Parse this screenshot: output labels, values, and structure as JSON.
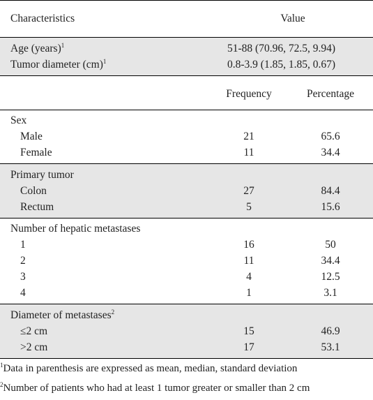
{
  "header": {
    "characteristics": "Characteristics",
    "value": "Value"
  },
  "continuous": [
    {
      "label": "Age (years)",
      "sup": "1",
      "value": "51-88 (70.96, 72.5, 9.94)"
    },
    {
      "label": "Tumor diameter (cm)",
      "sup": "1",
      "value": "0.8-3.9 (1.85, 1.85, 0.67)"
    }
  ],
  "subheader": {
    "frequency": "Frequency",
    "percentage": "Percentage"
  },
  "groups": {
    "sex": {
      "title": "Sex",
      "rows": [
        {
          "label": "Male",
          "freq": "21",
          "pct": "65.6"
        },
        {
          "label": "Female",
          "freq": "11",
          "pct": "34.4"
        }
      ]
    },
    "primary": {
      "title": "Primary tumor",
      "rows": [
        {
          "label": "Colon",
          "freq": "27",
          "pct": "84.4"
        },
        {
          "label": "Rectum",
          "freq": "5",
          "pct": "15.6"
        }
      ]
    },
    "hepatic": {
      "title": "Number of hepatic metastases",
      "rows": [
        {
          "label": "1",
          "freq": "16",
          "pct": "50"
        },
        {
          "label": "2",
          "freq": "11",
          "pct": "34.4"
        },
        {
          "label": "3",
          "freq": "4",
          "pct": "12.5"
        },
        {
          "label": "4",
          "freq": "1",
          "pct": "3.1"
        }
      ]
    },
    "diameter": {
      "title": "Diameter of metastases",
      "sup": "2",
      "rows": [
        {
          "label": "≤2 cm",
          "freq": "15",
          "pct": "46.9"
        },
        {
          "label": ">2 cm",
          "freq": "17",
          "pct": "53.1"
        }
      ]
    }
  },
  "footnotes": [
    {
      "sup": "1",
      "text": "Data in parenthesis are expressed as mean, median, standard deviation"
    },
    {
      "sup": "2",
      "text": "Number of patients who had at least 1 tumor greater or smaller than 2 cm"
    }
  ]
}
